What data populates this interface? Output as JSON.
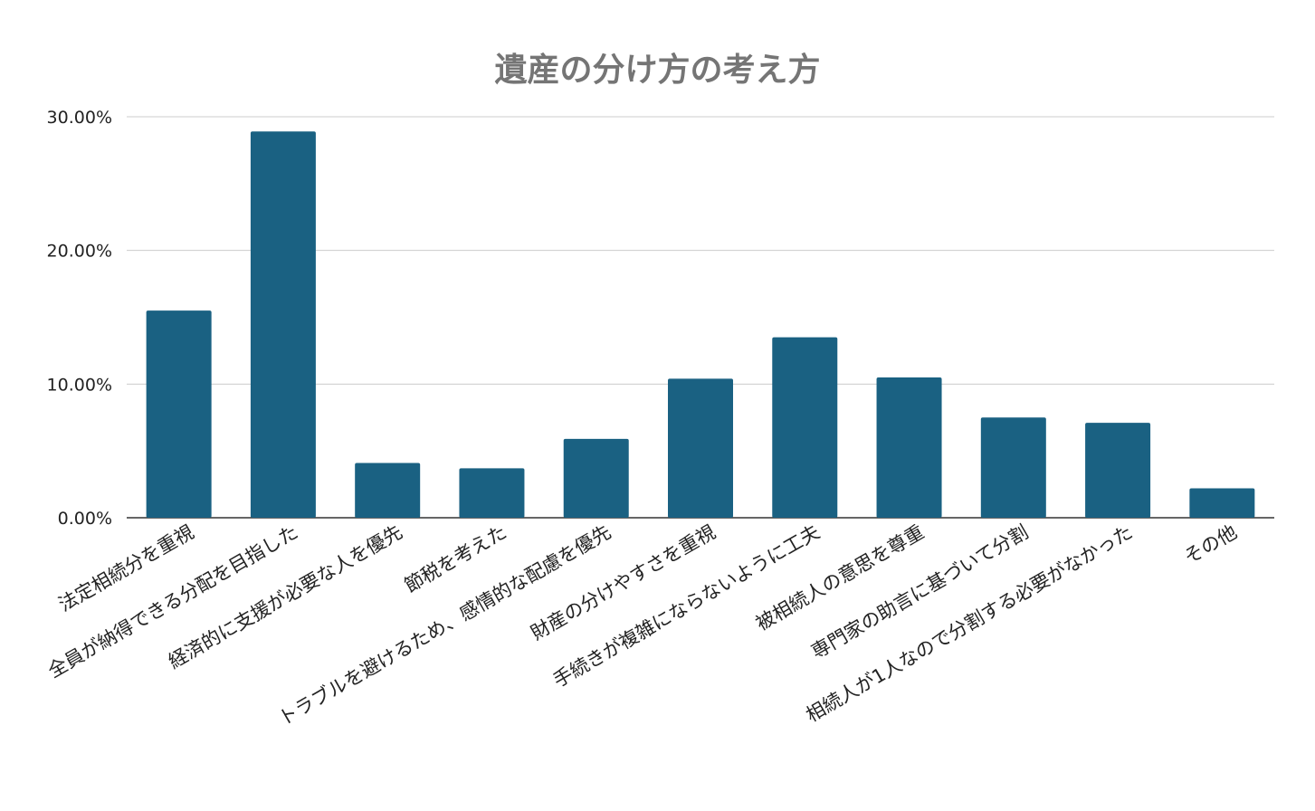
{
  "chart_data": {
    "type": "bar",
    "title": "遺産の分け方の考え方",
    "xlabel": "",
    "ylabel": "",
    "ylim": [
      0,
      0.3
    ],
    "yticks": [
      0,
      0.1,
      0.2,
      0.3
    ],
    "ytick_labels": [
      "0.00%",
      "10.00%",
      "20.00%",
      "30.00%"
    ],
    "grid": true,
    "legend": "none",
    "colors": {
      "bar": "#1a6182",
      "grid": "#cccccc",
      "axis": "#333333",
      "text": "#222222",
      "title": "#757575"
    },
    "categories": [
      "法定相続分を重視",
      "全員が納得できる分配を目指した",
      "経済的に支援が必要な人を優先",
      "節税を考えた",
      "トラブルを避けるため、感情的な配慮を優先",
      "財産の分けやすさを重視",
      "手続きが複雑にならないように工夫",
      "被相続人の意思を尊重",
      "専門家の助言に基づいて分割",
      "相続人が1人なので分割する必要がなかった",
      "その他"
    ],
    "values": [
      0.155,
      0.289,
      0.041,
      0.037,
      0.059,
      0.104,
      0.135,
      0.105,
      0.075,
      0.071,
      0.022
    ]
  }
}
